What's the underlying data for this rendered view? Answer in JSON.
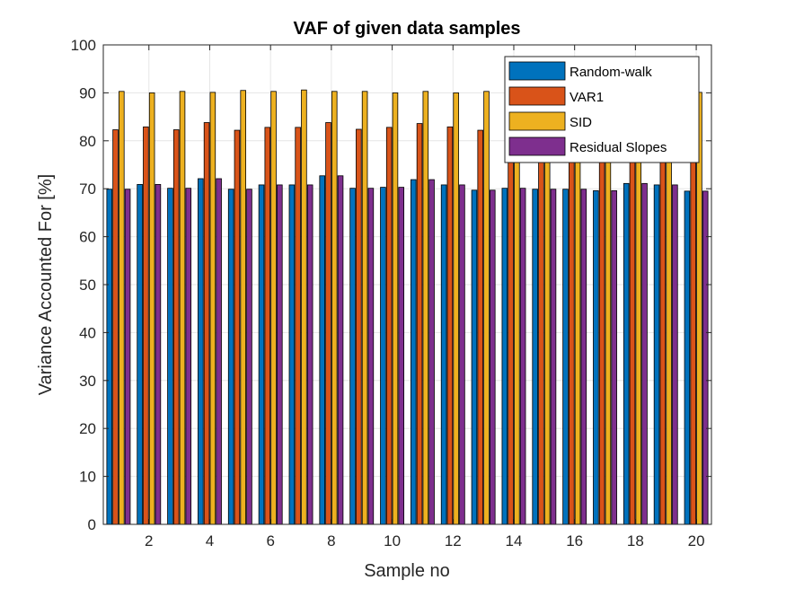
{
  "chart_data": {
    "type": "bar",
    "title": "VAF of given data samples",
    "xlabel": "Sample no",
    "ylabel": "Variance Accounted For [%]",
    "ylim": [
      0,
      100
    ],
    "xlim": [
      0.5,
      20.5
    ],
    "yticks": [
      "0",
      "10",
      "20",
      "30",
      "40",
      "50",
      "60",
      "70",
      "80",
      "90",
      "100"
    ],
    "xticks": [
      "2",
      "4",
      "6",
      "8",
      "10",
      "12",
      "14",
      "16",
      "18",
      "20"
    ],
    "grid": true,
    "legend_position": "top-right",
    "categories": [
      1,
      2,
      3,
      4,
      5,
      6,
      7,
      8,
      9,
      10,
      11,
      12,
      13,
      14,
      15,
      16,
      17,
      18,
      19,
      20
    ],
    "series": [
      {
        "name": "Random-walk",
        "color": "#0072BD",
        "values": [
          69.9,
          70.9,
          70.1,
          72.1,
          69.9,
          70.8,
          70.8,
          72.7,
          70.1,
          70.3,
          71.9,
          70.8,
          69.7,
          70.1,
          69.9,
          69.9,
          69.6,
          71.1,
          70.8,
          69.5
        ]
      },
      {
        "name": "VAR1",
        "color": "#D95319",
        "values": [
          82.3,
          82.9,
          82.3,
          83.8,
          82.2,
          82.8,
          82.8,
          83.8,
          82.4,
          82.8,
          83.6,
          82.9,
          82.2,
          82.6,
          82.2,
          82.4,
          82.0,
          83.2,
          82.8,
          82.0
        ]
      },
      {
        "name": "SID",
        "color": "#EDB120",
        "values": [
          90.3,
          90.0,
          90.3,
          90.1,
          90.5,
          90.3,
          90.6,
          90.3,
          90.3,
          90.0,
          90.3,
          90.0,
          90.3,
          90.3,
          90.1,
          90.3,
          90.1,
          90.3,
          90.3,
          90.1
        ]
      },
      {
        "name": "Residual Slopes",
        "color": "#7E2F8E",
        "values": [
          69.9,
          70.9,
          70.1,
          72.1,
          69.9,
          70.8,
          70.8,
          72.7,
          70.1,
          70.3,
          71.9,
          70.8,
          69.7,
          70.1,
          69.9,
          69.9,
          69.6,
          71.1,
          70.8,
          69.5
        ]
      }
    ]
  }
}
